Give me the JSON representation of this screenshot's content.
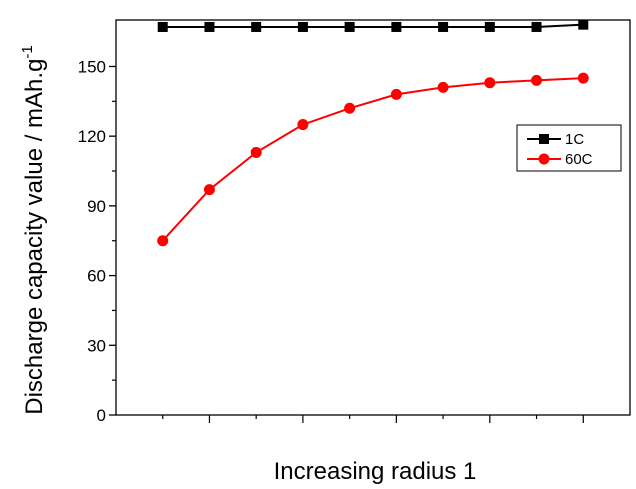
{
  "chart_data": {
    "type": "line",
    "xlabel": "Increasing radius 1",
    "ylabel": "Discharge capacity value / mAh.g",
    "ylabel_superscript": "-1",
    "x": [
      1,
      2,
      3,
      4,
      5,
      6,
      7,
      8,
      9,
      10
    ],
    "xlim": [
      0,
      11
    ],
    "ylim": [
      0,
      170
    ],
    "yticks": [
      0,
      30,
      60,
      90,
      120,
      150
    ],
    "ytick_labels": [
      "0",
      "30",
      "60",
      "90",
      "120",
      "150"
    ],
    "grid": false,
    "legend_position": "right",
    "series": [
      {
        "name": "1C",
        "color": "#000000",
        "marker": "square",
        "values": [
          167,
          167,
          167,
          167,
          167,
          167,
          167,
          167,
          167,
          168
        ]
      },
      {
        "name": "60C",
        "color": "#ff0000",
        "marker": "circle",
        "values": [
          75,
          97,
          113,
          125,
          132,
          138,
          141,
          143,
          144,
          145
        ]
      }
    ]
  }
}
